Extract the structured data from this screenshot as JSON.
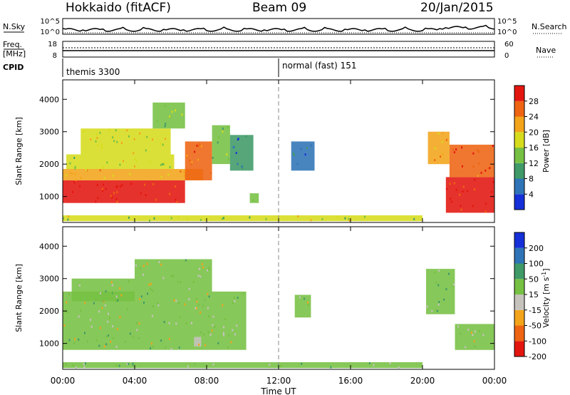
{
  "header": {
    "station": "Hokkaido (fitACF)",
    "beam": "Beam 09",
    "date": "20/Jan/2015"
  },
  "status_panel": {
    "nsky_label": "N.Sky",
    "nsky_ticks": [
      "10^5",
      "10^0"
    ],
    "nsearch_label": "N.Search",
    "nsearch_ticks": [
      "10^5",
      "10^0"
    ],
    "freq_label": "Freq.",
    "freq_unit": "[MHz]",
    "freq_ticks": [
      "18",
      "8"
    ],
    "nave_label": "Nave",
    "nave_ticks": [
      "60",
      "0"
    ],
    "cpid_label": "CPID",
    "cpid_segments": [
      {
        "start_hour": 0,
        "label": "themis 3300"
      },
      {
        "start_hour": 12,
        "label": "normal (fast) 151"
      }
    ]
  },
  "time_axis": {
    "label": "Time UT",
    "ticks": [
      "00:00",
      "04:00",
      "08:00",
      "12:00",
      "16:00",
      "20:00",
      "00:00"
    ],
    "range_hours": [
      0,
      24
    ]
  },
  "chart_data": [
    {
      "type": "heatmap",
      "name": "power",
      "ylabel": "Slant Range [km]",
      "yticks": [
        "1000",
        "2000",
        "3000",
        "4000"
      ],
      "ylim": [
        200,
        4600
      ],
      "colorbar_label": "Power [dB]",
      "colorbar_ticks": [
        "4",
        "8",
        "12",
        "16",
        "20",
        "24",
        "28"
      ],
      "colorbar_range": [
        0,
        32
      ],
      "colorscale": [
        "#1530d8",
        "#2f74b6",
        "#3f9a68",
        "#76c043",
        "#d6dc1c",
        "#f3a41a",
        "#ee6412",
        "#e3160f"
      ],
      "regions": [
        {
          "t": [
            0.0,
            6.8
          ],
          "r": [
            800,
            1500
          ],
          "value": 30
        },
        {
          "t": [
            0.0,
            7.8
          ],
          "r": [
            1500,
            1850
          ],
          "value": 22
        },
        {
          "t": [
            0.2,
            6.2
          ],
          "r": [
            1850,
            2300
          ],
          "value": 16
        },
        {
          "t": [
            1.0,
            6.0
          ],
          "r": [
            2300,
            3100
          ],
          "value": 18
        },
        {
          "t": [
            5.0,
            6.8
          ],
          "r": [
            3100,
            3900
          ],
          "value": 14
        },
        {
          "t": [
            6.8,
            8.3
          ],
          "r": [
            1500,
            2700
          ],
          "value": 26
        },
        {
          "t": [
            8.3,
            9.3
          ],
          "r": [
            2000,
            3200
          ],
          "value": 14
        },
        {
          "t": [
            9.3,
            10.6
          ],
          "r": [
            1800,
            2900
          ],
          "value": 8
        },
        {
          "t": [
            10.4,
            10.9
          ],
          "r": [
            800,
            1100
          ],
          "value": 12
        },
        {
          "t": [
            12.7,
            14.0
          ],
          "r": [
            1800,
            2700
          ],
          "value": 6
        },
        {
          "t": [
            0.0,
            20.0
          ],
          "r": [
            240,
            420
          ],
          "value": 16
        },
        {
          "t": [
            20.3,
            21.5
          ],
          "r": [
            2000,
            3000
          ],
          "value": 22
        },
        {
          "t": [
            21.3,
            24.0
          ],
          "r": [
            500,
            1600
          ],
          "value": 30
        },
        {
          "t": [
            21.5,
            24.0
          ],
          "r": [
            1600,
            2600
          ],
          "value": 26
        }
      ]
    },
    {
      "type": "heatmap",
      "name": "velocity",
      "ylabel": "Slant Range [km]",
      "yticks": [
        "1000",
        "2000",
        "3000",
        "4000"
      ],
      "ylim": [
        200,
        4600
      ],
      "colorbar_label": "Velocity [m s^-1]",
      "colorbar_ticks": [
        "200",
        "100",
        "50",
        "15",
        "-15",
        "-50",
        "-100",
        "-200"
      ],
      "colorbar_range": [
        -250,
        250
      ],
      "colorscale": [
        "#e3160f",
        "#ee6412",
        "#f3a41a",
        "#c6c3bd",
        "#76c043",
        "#3f9a68",
        "#2f74b6",
        "#1530d8"
      ],
      "regions": [
        {
          "t": [
            0.0,
            10.2
          ],
          "r": [
            800,
            2600
          ],
          "value": 0
        },
        {
          "t": [
            4.0,
            8.3
          ],
          "r": [
            2600,
            3600
          ],
          "value": 0
        },
        {
          "t": [
            0.5,
            4.0
          ],
          "r": [
            2300,
            3000
          ],
          "value": 0
        },
        {
          "t": [
            7.3,
            7.7
          ],
          "r": [
            900,
            1200
          ],
          "value": -40
        },
        {
          "t": [
            12.9,
            13.8
          ],
          "r": [
            1800,
            2500
          ],
          "value": 20
        },
        {
          "t": [
            0.0,
            20.0
          ],
          "r": [
            240,
            420
          ],
          "value": 20
        },
        {
          "t": [
            20.2,
            21.8
          ],
          "r": [
            1900,
            3300
          ],
          "value": 40
        },
        {
          "t": [
            21.8,
            24.0
          ],
          "r": [
            800,
            1600
          ],
          "value": 0
        }
      ]
    }
  ]
}
